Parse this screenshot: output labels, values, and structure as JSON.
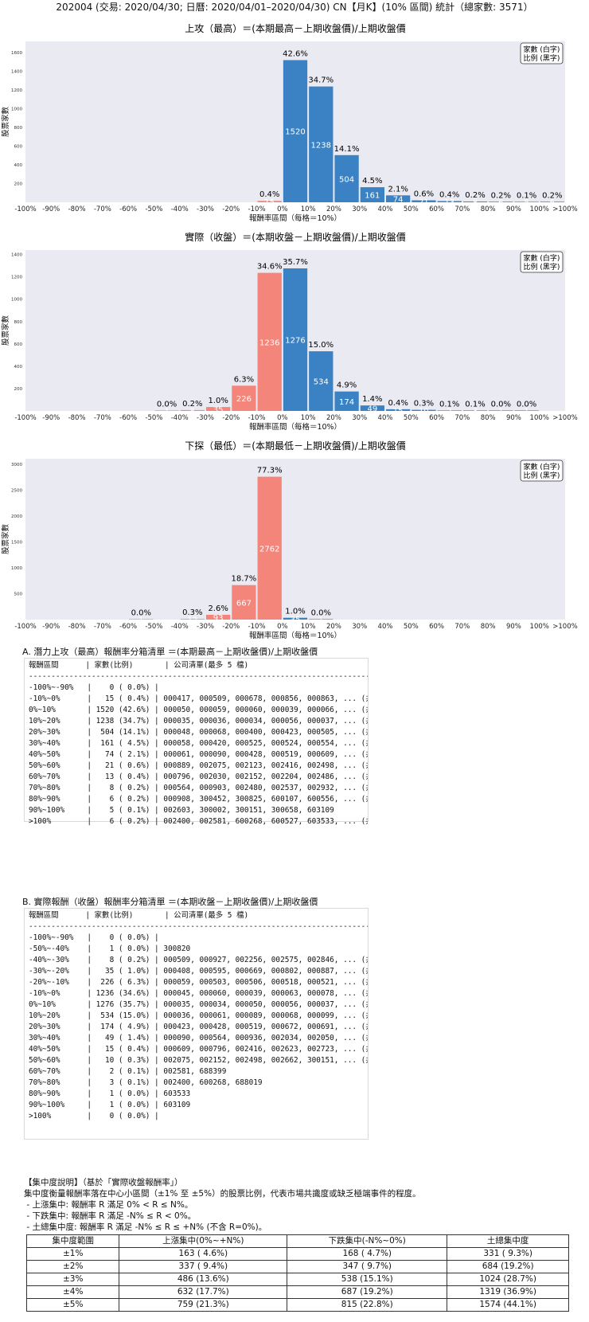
{
  "page_title": "202004 (交易: 2020/04/30; 日曆: 2020/04/01–2020/04/30) CN【月K】(10% 區間) 統計（總家數: 3571）",
  "chart_data": [
    {
      "type": "bar",
      "title": "上攻（最高）＝(本期最高－上期收盤價)/上期收盤價",
      "xlabel": "報酬率區間（每格＝10%）",
      "ylabel": "股票家數",
      "legend": [
        "家數 (白字)",
        "比例 (黑字)"
      ],
      "legend_position": "top-right",
      "x_tick_labels": [
        "-100%",
        "-90%",
        "-80%",
        "-70%",
        "-60%",
        "-50%",
        "-40%",
        "-30%",
        "-20%",
        "-10%",
        "0%",
        "10%",
        "20%",
        "30%",
        "40%",
        "50%",
        "60%",
        "70%",
        "80%",
        "90%",
        "100%",
        ">100%"
      ],
      "y_ticks": [
        200,
        400,
        600,
        800,
        1000,
        1200,
        1400,
        1600
      ],
      "ylim": [
        0,
        1720
      ],
      "bars": [
        {
          "bin": 9,
          "value": 15,
          "pct": "0.4%",
          "color": "#f4857a"
        },
        {
          "bin": 10,
          "value": 1520,
          "pct": "42.6%",
          "color": "#3b82c4"
        },
        {
          "bin": 11,
          "value": 1238,
          "pct": "34.7%",
          "color": "#3b82c4"
        },
        {
          "bin": 12,
          "value": 504,
          "pct": "14.1%",
          "color": "#3b82c4"
        },
        {
          "bin": 13,
          "value": 161,
          "pct": "4.5%",
          "color": "#3b82c4"
        },
        {
          "bin": 14,
          "value": 74,
          "pct": "2.1%",
          "color": "#3b82c4"
        },
        {
          "bin": 15,
          "value": 21,
          "pct": "0.6%",
          "color": "#3b82c4"
        },
        {
          "bin": 16,
          "value": 13,
          "pct": "0.4%",
          "color": "#3b82c4"
        },
        {
          "bin": 17,
          "value": 8,
          "pct": "0.2%",
          "color": "#3b82c4"
        },
        {
          "bin": 18,
          "value": 6,
          "pct": "0.2%",
          "color": "#3b82c4"
        },
        {
          "bin": 19,
          "value": 5,
          "pct": "0.1%",
          "color": "#3b82c4"
        },
        {
          "bin": 20,
          "value": 6,
          "pct": "0.2%",
          "color": "#3b82c4"
        }
      ]
    },
    {
      "type": "bar",
      "title": "實際（收盤）＝(本期收盤－上期收盤價)/上期收盤價",
      "xlabel": "報酬率區間（每格＝10%）",
      "ylabel": "股票家數",
      "legend": [
        "家數 (白字)",
        "比例 (黑字)"
      ],
      "legend_position": "top-right",
      "x_tick_labels": [
        "-100%",
        "-90%",
        "-80%",
        "-70%",
        "-60%",
        "-50%",
        "-40%",
        "-30%",
        "-20%",
        "-10%",
        "0%",
        "10%",
        "20%",
        "30%",
        "40%",
        "50%",
        "60%",
        "70%",
        "80%",
        "90%",
        "100%",
        ">100%"
      ],
      "y_ticks": [
        200,
        400,
        600,
        800,
        1000,
        1200,
        1400
      ],
      "ylim": [
        0,
        1440
      ],
      "bars": [
        {
          "bin": 5,
          "value": 1,
          "pct": "0.0%",
          "color": "#f4857a"
        },
        {
          "bin": 6,
          "value": 8,
          "pct": "0.2%",
          "color": "#f4857a"
        },
        {
          "bin": 7,
          "value": 35,
          "pct": "1.0%",
          "color": "#f4857a"
        },
        {
          "bin": 8,
          "value": 226,
          "pct": "6.3%",
          "color": "#f4857a"
        },
        {
          "bin": 9,
          "value": 1236,
          "pct": "34.6%",
          "color": "#f4857a"
        },
        {
          "bin": 10,
          "value": 1276,
          "pct": "35.7%",
          "color": "#3b82c4"
        },
        {
          "bin": 11,
          "value": 534,
          "pct": "15.0%",
          "color": "#3b82c4"
        },
        {
          "bin": 12,
          "value": 174,
          "pct": "4.9%",
          "color": "#3b82c4"
        },
        {
          "bin": 13,
          "value": 49,
          "pct": "1.4%",
          "color": "#3b82c4"
        },
        {
          "bin": 14,
          "value": 15,
          "pct": "0.4%",
          "color": "#3b82c4"
        },
        {
          "bin": 15,
          "value": 10,
          "pct": "0.3%",
          "color": "#3b82c4"
        },
        {
          "bin": 16,
          "value": 2,
          "pct": "0.1%",
          "color": "#3b82c4"
        },
        {
          "bin": 17,
          "value": 3,
          "pct": "0.1%",
          "color": "#3b82c4"
        },
        {
          "bin": 18,
          "value": 1,
          "pct": "0.0%",
          "color": "#3b82c4"
        },
        {
          "bin": 19,
          "value": 1,
          "pct": "0.0%",
          "color": "#3b82c4"
        }
      ]
    },
    {
      "type": "bar",
      "title": "下探（最低）＝(本期最低－上期收盤價)/上期收盤價",
      "xlabel": "報酬率區間（每格＝10%）",
      "ylabel": "股票家數",
      "legend": [
        "家數 (白字)",
        "比例 (黑字)"
      ],
      "legend_position": "top-right",
      "x_tick_labels": [
        "-100%",
        "-90%",
        "-80%",
        "-70%",
        "-60%",
        "-50%",
        "-40%",
        "-30%",
        "-20%",
        "-10%",
        "0%",
        "10%",
        "20%",
        "30%",
        "40%",
        "50%",
        "60%",
        "70%",
        "80%",
        "90%",
        "100%",
        ">100%"
      ],
      "y_ticks": [
        500,
        1000,
        1500,
        2000,
        2500,
        3000
      ],
      "ylim": [
        0,
        3110
      ],
      "bars": [
        {
          "bin": 4,
          "value": 1,
          "pct": "0.0%",
          "color": "#f4857a"
        },
        {
          "bin": 6,
          "value": 12,
          "pct": "0.3%",
          "color": "#f4857a"
        },
        {
          "bin": 7,
          "value": 93,
          "pct": "2.6%",
          "color": "#f4857a"
        },
        {
          "bin": 8,
          "value": 667,
          "pct": "18.7%",
          "color": "#f4857a"
        },
        {
          "bin": 9,
          "value": 2762,
          "pct": "77.3%",
          "color": "#f4857a"
        },
        {
          "bin": 10,
          "value": 35,
          "pct": "1.0%",
          "color": "#3b82c4"
        },
        {
          "bin": 11,
          "value": 1,
          "pct": "0.0%",
          "color": "#3b82c4"
        }
      ]
    }
  ],
  "list_a": {
    "title": "A. 潛力上攻（最高）報酬率分箱清單 ＝(本期最高－上期收盤價)/上期收盤價",
    "lines": [
      "報酬區間      | 家數(比例)       | 公司清單(最多 5 檔)",
      "------------------------------------------------------------------------------------------------",
      "-100%~-90%   |    0 ( 0.0%) |",
      "-10%~0%      |   15 ( 0.4%) | 000417, 000509, 000678, 000856, 000863, ... (共 15 檔)",
      "0%~10%       | 1520 (42.6%) | 000050, 000059, 000060, 000039, 000066, ... (共 1520 檔)",
      "10%~20%      | 1238 (34.7%) | 000035, 000036, 000034, 000056, 000037, ... (共 1238 檔)",
      "20%~30%      |  504 (14.1%) | 000048, 000068, 000400, 000423, 000505, ... (共 504 檔)",
      "30%~40%      |  161 ( 4.5%) | 000058, 000420, 000525, 000524, 000554, ... (共 161 檔)",
      "40%~50%      |   74 ( 2.1%) | 000061, 000090, 000428, 000519, 000609, ... (共 74 檔)",
      "50%~60%      |   21 ( 0.6%) | 000889, 002075, 002123, 002416, 002498, ... (共 21 檔)",
      "60%~70%      |   13 ( 0.4%) | 000796, 002030, 002152, 002204, 002486, ... (共 13 檔)",
      "70%~80%      |    8 ( 0.2%) | 000564, 000903, 002480, 002537, 002932, ... (共 8 檔)",
      "80%~90%      |    6 ( 0.2%) | 000908, 300452, 300825, 600107, 600556, ... (共 6 檔)",
      "90%~100%     |    5 ( 0.1%) | 002603, 300002, 300151, 300658, 603109",
      ">100%        |    6 ( 0.2%) | 002400, 002581, 600268, 600527, 603533, ... (共 6 檔)"
    ]
  },
  "list_b": {
    "title": "B. 實際報酬（收盤）報酬率分箱清單 ＝(本期收盤－上期收盤價)/上期收盤價",
    "lines": [
      "報酬區間      | 家數(比例)       | 公司清單(最多 5 檔)",
      "------------------------------------------------------------------------------------------------",
      "-100%~-90%   |    0 ( 0.0%) |",
      "-50%~-40%    |    1 ( 0.0%) | 300820",
      "-40%~-30%    |    8 ( 0.2%) | 000509, 000927, 002256, 002575, 002846, ... (共 8 檔)",
      "-30%~-20%    |   35 ( 1.0%) | 000408, 000595, 000669, 000802, 000887, ... (共 35 檔)",
      "-20%~-10%    |  226 ( 6.3%) | 000059, 000503, 000506, 000518, 000521, ... (共 226 檔)",
      "-10%~0%      | 1236 (34.6%) | 000045, 000060, 000039, 000063, 000078, ... (共 1236 檔)",
      "0%~10%       | 1276 (35.7%) | 000035, 000034, 000050, 000056, 000037, ... (共 1276 檔)",
      "10%~20%      |  534 (15.0%) | 000036, 000061, 000089, 000068, 000099, ... (共 534 檔)",
      "20%~30%      |  174 ( 4.9%) | 000423, 000428, 000519, 000672, 000691, ... (共 174 檔)",
      "30%~40%      |   49 ( 1.4%) | 000090, 000564, 000936, 002034, 002050, ... (共 49 檔)",
      "40%~50%      |   15 ( 0.4%) | 000609, 000796, 002416, 002623, 002723, ... (共 15 檔)",
      "50%~60%      |   10 ( 0.3%) | 002075, 002152, 002498, 002662, 300151, ... (共 10 檔)",
      "60%~70%      |    2 ( 0.1%) | 002581, 688399",
      "70%~80%      |    3 ( 0.1%) | 002400, 600268, 688019",
      "80%~90%      |    1 ( 0.0%) | 603533",
      "90%~100%     |    1 ( 0.0%) | 603109",
      ">100%        |    0 ( 0.0%) |"
    ]
  },
  "concentration": {
    "lines": [
      "【集中度說明】（基於「實際收盤報酬率」）",
      "集中度衡量報酬率落在中心小區間（±1% 至 ±5%）的股票比例，代表市場共識度或缺乏極端事件的程度。",
      " - 上漲集中: 報酬率 R 滿足 0% < R ≤ N%。",
      " - 下跌集中: 報酬率 R 滿足 -N% ≤ R < 0%。",
      " - 土總集中度: 報酬率 R 滿足 -N% ≤ R ≤ +N% (不含 R=0%)。"
    ],
    "table": {
      "headers": [
        "集中度範圍",
        "上漲集中(0%~+N%)",
        "下跌集中(-N%~0%)",
        "土總集中度"
      ],
      "rows": [
        [
          "±1%",
          "163 ( 4.6%)",
          "168 ( 4.7%)",
          "331 ( 9.3%)"
        ],
        [
          "±2%",
          "337 ( 9.4%)",
          "347 ( 9.7%)",
          "684 (19.2%)"
        ],
        [
          "±3%",
          "486 (13.6%)",
          "538 (15.1%)",
          "1024 (28.7%)"
        ],
        [
          "±4%",
          "632 (17.7%)",
          "687 (19.2%)",
          "1319 (36.9%)"
        ],
        [
          "±5%",
          "759 (21.3%)",
          "815 (22.8%)",
          "1574 (44.1%)"
        ]
      ]
    }
  }
}
